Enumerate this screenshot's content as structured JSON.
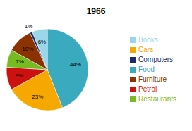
{
  "chart_data": {
    "type": "pie",
    "title": "1966",
    "categories": [
      "Food",
      "Cars",
      "Petrol",
      "Restaurants",
      "Furniture",
      "Computers",
      "Books"
    ],
    "values": [
      44,
      23,
      9,
      7,
      10,
      1,
      6
    ],
    "value_labels": [
      "44%",
      "23%",
      "9%",
      "7%",
      "10%",
      "1%",
      "6%"
    ],
    "colors": [
      "#3AAABF",
      "#F5A800",
      "#CC1111",
      "#77BB22",
      "#8B3300",
      "#1A2A6E",
      "#99D6E8"
    ],
    "data_labels": true,
    "legend": "right"
  }
}
